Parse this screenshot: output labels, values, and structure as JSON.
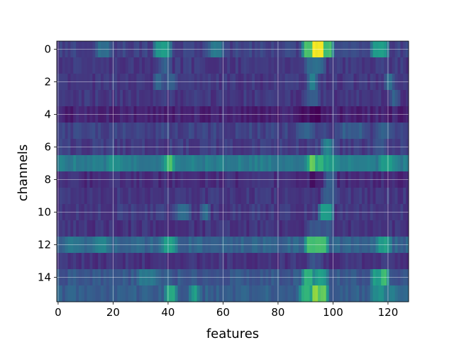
{
  "chart_data": {
    "type": "heatmap",
    "title": "",
    "xlabel": "features",
    "ylabel": "channels",
    "n_features": 128,
    "n_channels": 16,
    "xlim": [
      -0.5,
      127.5
    ],
    "ylim": [
      15.5,
      -0.5
    ],
    "xticks": [
      0,
      20,
      40,
      60,
      80,
      100,
      120
    ],
    "yticks": [
      0,
      2,
      4,
      6,
      8,
      10,
      12,
      14
    ],
    "grid": true,
    "colormap": "viridis",
    "value_range": [
      0,
      1
    ],
    "channel_baseline": [
      0.2,
      0.17,
      0.16,
      0.16,
      0.1,
      0.2,
      0.18,
      0.42,
      0.13,
      0.16,
      0.17,
      0.15,
      0.32,
      0.15,
      0.27,
      0.3
    ],
    "hotspots": [
      {
        "channel": 0,
        "features": [
          [
            36,
            40,
            0.55
          ],
          [
            90,
            92,
            0.72
          ],
          [
            93,
            96,
            1.0
          ],
          [
            97,
            99,
            0.7
          ],
          [
            115,
            119,
            0.55
          ],
          [
            56,
            59,
            0.4
          ],
          [
            15,
            18,
            0.35
          ]
        ]
      },
      {
        "channel": 1,
        "features": [
          [
            91,
            96,
            0.35
          ],
          [
            38,
            40,
            0.3
          ]
        ]
      },
      {
        "channel": 2,
        "features": [
          [
            92,
            93,
            0.45
          ],
          [
            36,
            37,
            0.35
          ],
          [
            40,
            42,
            0.3
          ],
          [
            120,
            121,
            0.35
          ]
        ]
      },
      {
        "channel": 3,
        "features": [
          [
            91,
            94,
            0.28
          ],
          [
            122,
            123,
            0.3
          ]
        ]
      },
      {
        "channel": 4,
        "features": [
          [
            92,
            95,
            0.02
          ],
          [
            88,
            90,
            0.05
          ]
        ]
      },
      {
        "channel": 5,
        "features": [
          [
            88,
            92,
            0.3
          ],
          [
            104,
            110,
            0.3
          ],
          [
            117,
            120,
            0.3
          ]
        ]
      },
      {
        "channel": 6,
        "features": [
          [
            97,
            99,
            0.45
          ],
          [
            116,
            118,
            0.28
          ]
        ]
      },
      {
        "channel": 7,
        "features": [
          [
            40,
            41,
            0.7
          ],
          [
            92,
            93,
            0.75
          ],
          [
            95,
            96,
            0.65
          ],
          [
            19,
            22,
            0.5
          ],
          [
            118,
            121,
            0.55
          ],
          [
            98,
            100,
            0.55
          ]
        ]
      },
      {
        "channel": 8,
        "features": [
          [
            98,
            100,
            0.3
          ],
          [
            92,
            93,
            0.05
          ]
        ]
      },
      {
        "channel": 9,
        "features": [
          [
            97,
            100,
            0.3
          ]
        ]
      },
      {
        "channel": 10,
        "features": [
          [
            96,
            99,
            0.55
          ],
          [
            44,
            47,
            0.35
          ],
          [
            53,
            54,
            0.35
          ]
        ]
      },
      {
        "channel": 11,
        "features": [
          [
            92,
            99,
            0.28
          ]
        ]
      },
      {
        "channel": 12,
        "features": [
          [
            91,
            97,
            0.7
          ],
          [
            39,
            42,
            0.55
          ],
          [
            14,
            17,
            0.45
          ],
          [
            117,
            120,
            0.55
          ],
          [
            4,
            8,
            0.4
          ]
        ]
      },
      {
        "channel": 13,
        "features": [
          [
            92,
            95,
            0.25
          ]
        ]
      },
      {
        "channel": 14,
        "features": [
          [
            90,
            92,
            0.65
          ],
          [
            94,
            97,
            0.55
          ],
          [
            115,
            118,
            0.55
          ],
          [
            118,
            119,
            0.7
          ],
          [
            30,
            35,
            0.4
          ]
        ]
      },
      {
        "channel": 15,
        "features": [
          [
            89,
            91,
            0.65
          ],
          [
            93,
            94,
            0.85
          ],
          [
            95,
            97,
            0.75
          ],
          [
            40,
            42,
            0.6
          ],
          [
            49,
            50,
            0.55
          ],
          [
            115,
            118,
            0.5
          ],
          [
            121,
            122,
            0.45
          ]
        ]
      }
    ]
  },
  "colors": {
    "background": "#ffffff",
    "grid": "#ffffff",
    "text": "#000000",
    "viridis_stops": [
      "#440154",
      "#482878",
      "#3e4989",
      "#31688e",
      "#26828e",
      "#1f9e89",
      "#35b779",
      "#6ece58",
      "#b5de2b",
      "#fde725"
    ]
  }
}
